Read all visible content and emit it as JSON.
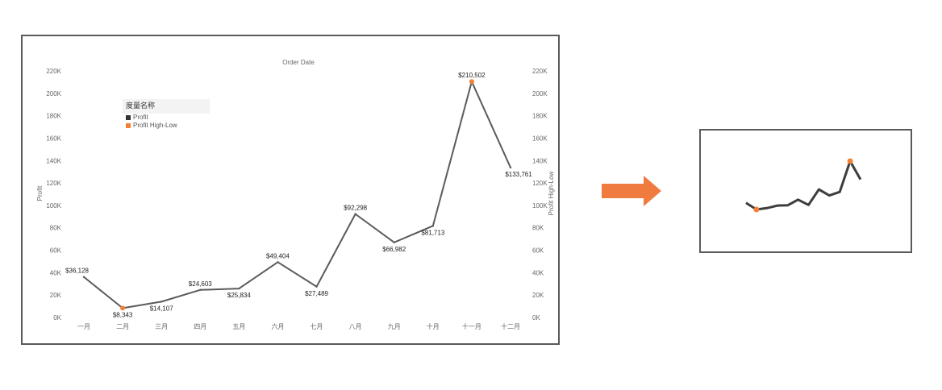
{
  "colors": {
    "line": "#5b5b5b",
    "highlight": "#f28036",
    "arrow": "#f07b3f",
    "axis_text": "#666666"
  },
  "legend": {
    "title": "度量名称",
    "items": [
      {
        "label": "Profit",
        "color": "#333333"
      },
      {
        "label": "Profit High-Low",
        "color": "#f28036"
      }
    ]
  },
  "chart_data": [
    {
      "type": "line",
      "title": "Order Date",
      "ylabel": "Profit",
      "ylabel_right": "Profit High-Low",
      "ylim": [
        0,
        220000
      ],
      "yticks": [
        "0K",
        "20K",
        "40K",
        "60K",
        "80K",
        "100K",
        "120K",
        "140K",
        "160K",
        "180K",
        "200K",
        "220K"
      ],
      "categories": [
        "一月",
        "二月",
        "三月",
        "四月",
        "五月",
        "六月",
        "七月",
        "八月",
        "九月",
        "十月",
        "十一月",
        "十二月"
      ],
      "series": [
        {
          "name": "Profit",
          "values": [
            36128,
            8343,
            14107,
            24603,
            25834,
            49404,
            27489,
            92298,
            66982,
            81713,
            210502,
            133761
          ]
        }
      ],
      "data_labels": [
        "$36,128",
        "$8,343",
        "$14,107",
        "$24,603",
        "$25,834",
        "$49,404",
        "$27,489",
        "$92,298",
        "$66,982",
        "$81,713",
        "$210,502",
        "$133,761"
      ],
      "highlight": {
        "series": "Profit High-Low",
        "indices": [
          1,
          10
        ]
      },
      "grid": false,
      "legend_position": "top-left"
    },
    {
      "type": "line",
      "variant": "sparkline",
      "values": [
        36128,
        8343,
        14107,
        24603,
        25834,
        49404,
        27489,
        92298,
        66982,
        81713,
        210502,
        133761
      ],
      "highlight_indices": [
        1,
        10
      ]
    }
  ]
}
